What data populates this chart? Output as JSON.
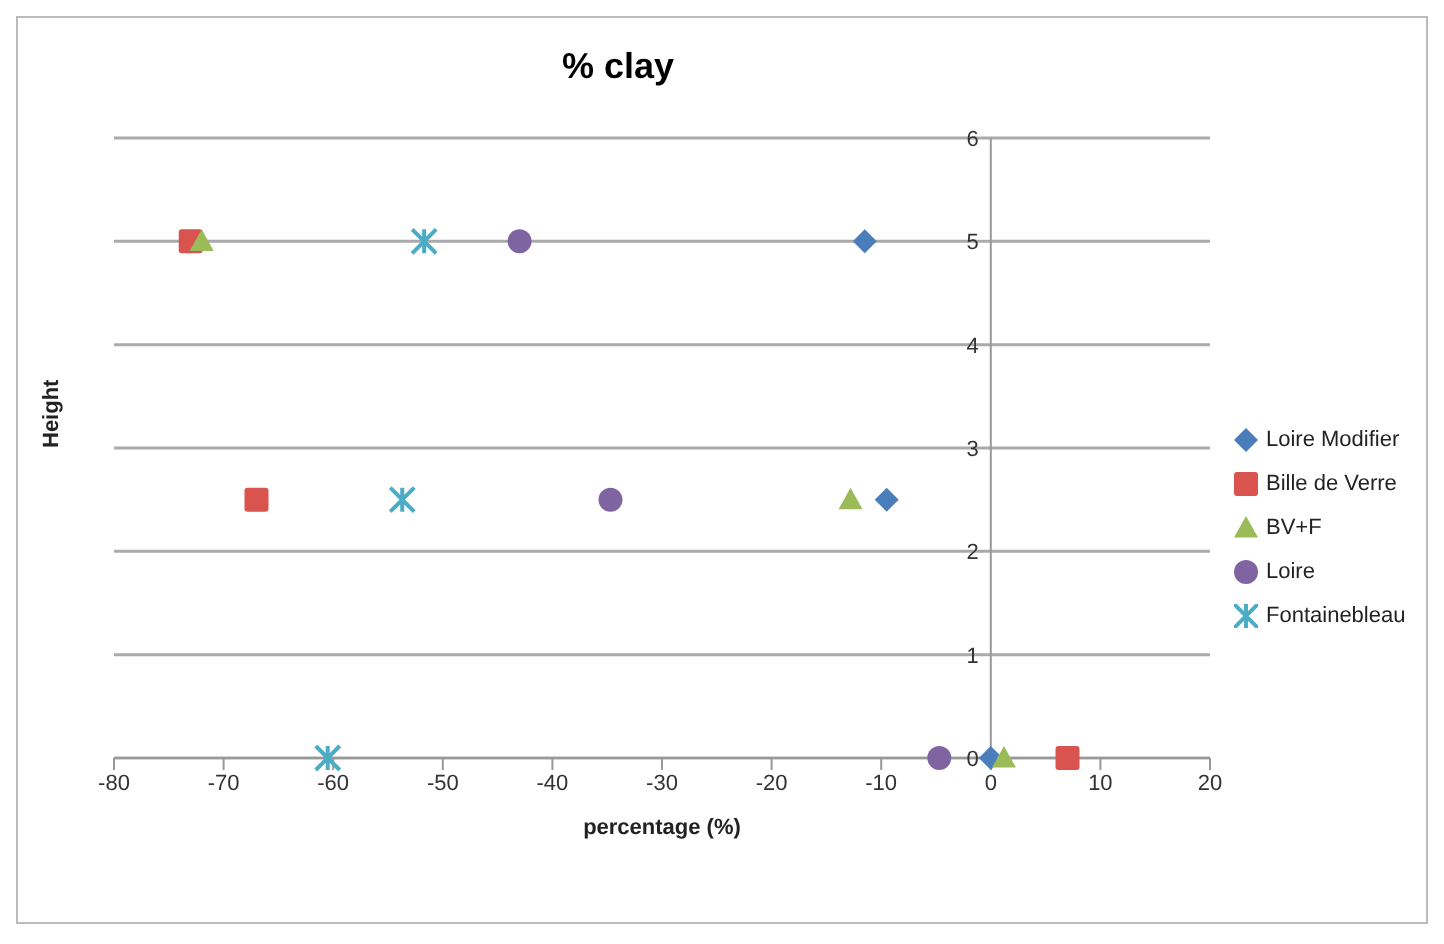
{
  "chart_data": {
    "type": "scatter",
    "title": "% clay",
    "xlabel": "percentage (%)",
    "ylabel": "Height",
    "xlim": [
      -80,
      20
    ],
    "xticks": [
      -80,
      -70,
      -60,
      -50,
      -40,
      -30,
      -20,
      -10,
      0,
      10,
      20
    ],
    "ylim": [
      0,
      6
    ],
    "yticks": [
      0,
      1,
      2,
      3,
      4,
      5,
      6
    ],
    "grid": "y",
    "legend": "right",
    "series": [
      {
        "name": "Loire Modifier",
        "color": "#4a7ebb",
        "marker": "diamond",
        "x": [
          -11.5,
          -9.5,
          0
        ],
        "values": [
          5,
          2.5,
          0
        ]
      },
      {
        "name": "Bille de Verre",
        "color": "#d9534f",
        "marker": "square",
        "x": [
          -73,
          -67,
          7
        ],
        "values": [
          5,
          2.5,
          0
        ]
      },
      {
        "name": "BV+F",
        "color": "#9bbb59",
        "marker": "triangle",
        "x": [
          -72,
          -12.8,
          1.2
        ],
        "values": [
          5,
          2.5,
          0
        ]
      },
      {
        "name": "Loire",
        "color": "#8064a2",
        "marker": "circle",
        "x": [
          -43,
          -34.7,
          -4.7
        ],
        "values": [
          5,
          2.5,
          0
        ]
      },
      {
        "name": "Fontainebleau",
        "color": "#4bacc6",
        "marker": "cross",
        "x": [
          -51.7,
          -53.7,
          -60.5
        ],
        "values": [
          5,
          2.5,
          0
        ]
      }
    ]
  }
}
